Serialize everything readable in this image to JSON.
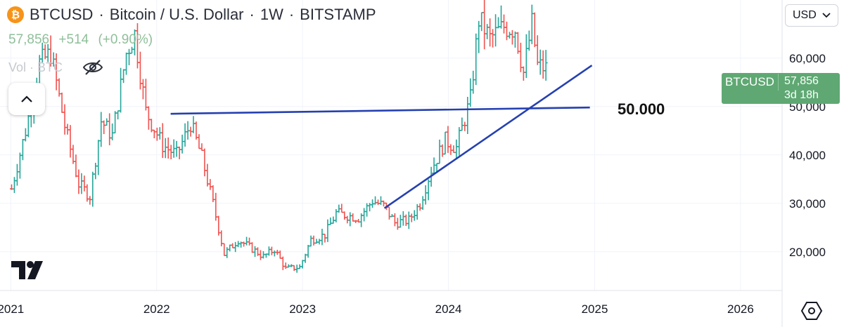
{
  "header": {
    "symbol": "BTCUSD",
    "name": "Bitcoin / U.S. Dollar",
    "interval": "1W",
    "exchange": "BITSTAMP",
    "separator": "·",
    "icon_glyph": "₿",
    "price": "57,856",
    "change": "+514",
    "change_pct": "(+0.90%)",
    "volume_label": "Vol · BTC",
    "hide_icon": "eye-slash-icon"
  },
  "toolbar": {
    "currency": "USD",
    "currency_chevron": "chevron-down-icon",
    "collapse_icon": "chevron-up-icon",
    "settings_icon": "settings-hexagon-icon"
  },
  "price_tag": {
    "symbol": "BTCUSD",
    "price": "57,856",
    "countdown": "3d 18h"
  },
  "annotation": {
    "text": "50.000"
  },
  "colors": {
    "up": "#26a69a",
    "down": "#ef5350",
    "trend_line": "#2540b0",
    "price_tag": "#5fa873"
  },
  "chart_data": {
    "type": "ohlc",
    "yaxis_ticks": [
      "20,000",
      "30,000",
      "40,000",
      "50,000",
      "60,000"
    ],
    "xaxis_ticks": [
      "2021",
      "2022",
      "2023",
      "2024",
      "2025",
      "2026"
    ],
    "x_range": [
      "2020-12-05",
      "2026-04-15"
    ],
    "y_range": [
      12000,
      72000
    ],
    "lines": [
      {
        "from": [
          "2022-02-05",
          48500
        ],
        "to": [
          "2024-12-20",
          49800
        ]
      },
      {
        "from": [
          "2023-07-25",
          29000
        ],
        "to": [
          "2024-12-25",
          58500
        ]
      }
    ],
    "series": [
      {
        "x": "2021-01-03",
        "close": 33000
      },
      {
        "x": "2021-02-07",
        "close": 45000
      },
      {
        "x": "2021-03-14",
        "close": 59000
      },
      {
        "x": "2021-04-11",
        "close": 61000
      },
      {
        "x": "2021-05-16",
        "close": 46000
      },
      {
        "x": "2021-06-20",
        "close": 34000
      },
      {
        "x": "2021-07-18",
        "close": 31500
      },
      {
        "x": "2021-08-15",
        "close": 47000
      },
      {
        "x": "2021-09-12",
        "close": 44000
      },
      {
        "x": "2021-10-17",
        "close": 61000
      },
      {
        "x": "2021-11-07",
        "close": 65000
      },
      {
        "x": "2021-12-05",
        "close": 49000
      },
      {
        "x": "2022-01-16",
        "close": 42000
      },
      {
        "x": "2022-02-20",
        "close": 40000
      },
      {
        "x": "2022-03-27",
        "close": 46500
      },
      {
        "x": "2022-04-24",
        "close": 39500
      },
      {
        "x": "2022-05-22",
        "close": 30000
      },
      {
        "x": "2022-06-19",
        "close": 19500
      },
      {
        "x": "2022-07-24",
        "close": 22500
      },
      {
        "x": "2022-08-21",
        "close": 21000
      },
      {
        "x": "2022-09-25",
        "close": 19000
      },
      {
        "x": "2022-10-23",
        "close": 20500
      },
      {
        "x": "2022-11-20",
        "close": 16500
      },
      {
        "x": "2022-12-25",
        "close": 16800
      },
      {
        "x": "2023-01-22",
        "close": 22500
      },
      {
        "x": "2023-02-26",
        "close": 23500
      },
      {
        "x": "2023-03-26",
        "close": 28000
      },
      {
        "x": "2023-04-23",
        "close": 27500
      },
      {
        "x": "2023-05-21",
        "close": 27000
      },
      {
        "x": "2023-06-25",
        "close": 30500
      },
      {
        "x": "2023-07-23",
        "close": 29500
      },
      {
        "x": "2023-08-20",
        "close": 26000
      },
      {
        "x": "2023-09-24",
        "close": 26500
      },
      {
        "x": "2023-10-22",
        "close": 30000
      },
      {
        "x": "2023-11-19",
        "close": 37000
      },
      {
        "x": "2023-12-24",
        "close": 43000
      },
      {
        "x": "2024-01-21",
        "close": 41500
      },
      {
        "x": "2024-02-25",
        "close": 51500
      },
      {
        "x": "2024-03-17",
        "close": 68000
      },
      {
        "x": "2024-04-14",
        "close": 64000
      },
      {
        "x": "2024-05-19",
        "close": 66500
      },
      {
        "x": "2024-06-16",
        "close": 66000
      },
      {
        "x": "2024-07-07",
        "close": 57000
      },
      {
        "x": "2024-07-28",
        "close": 67000
      },
      {
        "x": "2024-08-11",
        "close": 58500
      },
      {
        "x": "2024-09-01",
        "close": 57856
      }
    ]
  }
}
